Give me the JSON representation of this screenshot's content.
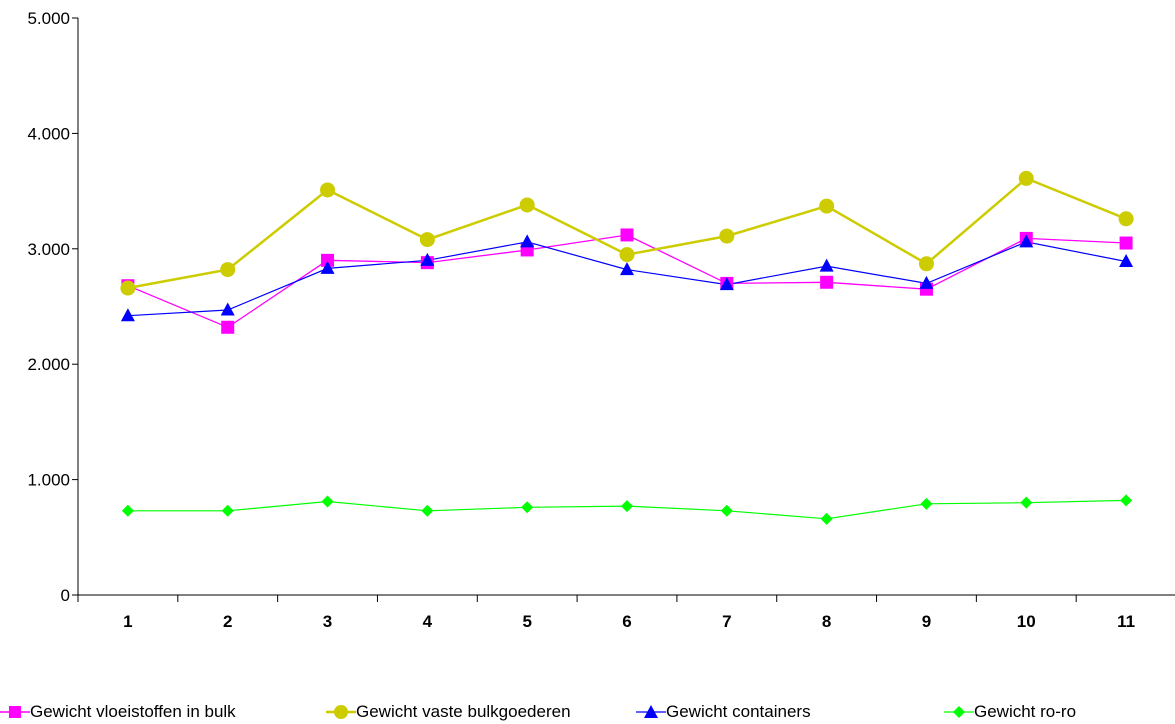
{
  "chart_data": {
    "type": "line",
    "categories": [
      "1",
      "2",
      "3",
      "4",
      "5",
      "6",
      "7",
      "8",
      "9",
      "10",
      "11"
    ],
    "y_ticks": [
      "0",
      "1.000",
      "2.000",
      "3.000",
      "4.000",
      "5.000"
    ],
    "ylim": [
      0,
      5000
    ],
    "grid": false,
    "legend_position": "bottom",
    "series": [
      {
        "name": "Gewicht vloeistoffen in bulk",
        "color": "#ff00ff",
        "marker": "square",
        "values": [
          2680,
          2320,
          2900,
          2880,
          2990,
          3120,
          2700,
          2710,
          2650,
          3090,
          3050
        ]
      },
      {
        "name": "Gewicht vaste bulkgoederen",
        "color": "#cccc00",
        "marker": "circle",
        "values": [
          2660,
          2820,
          3510,
          3080,
          3380,
          2950,
          3110,
          3370,
          2870,
          3610,
          3260
        ]
      },
      {
        "name": "Gewicht containers",
        "color": "#0000ff",
        "marker": "triangle",
        "values": [
          2420,
          2470,
          2830,
          2900,
          3060,
          2820,
          2690,
          2850,
          2700,
          3060,
          2890
        ]
      },
      {
        "name": "Gewicht ro-ro",
        "color": "#00ff00",
        "marker": "diamond",
        "values": [
          730,
          730,
          810,
          730,
          760,
          770,
          730,
          660,
          790,
          800,
          820
        ]
      }
    ]
  }
}
